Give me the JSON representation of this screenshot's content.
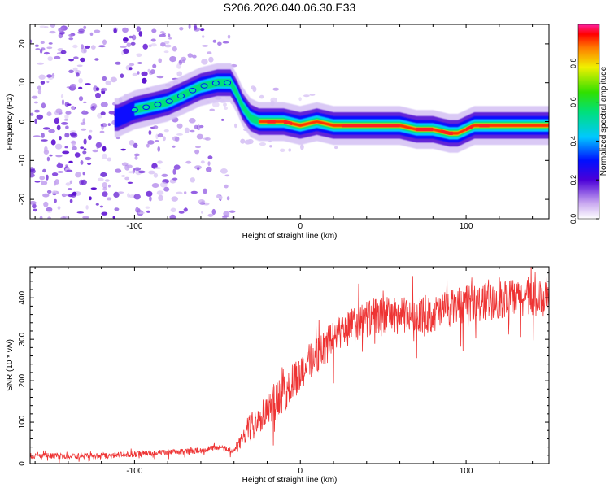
{
  "title": "S206.2026.040.06.30.E33",
  "chart_data": [
    {
      "type": "heatmap",
      "xlabel": "Height of straight line (km)",
      "ylabel": "Frequency (Hz)",
      "xlim": [
        -163,
        150
      ],
      "ylim": [
        -25,
        25
      ],
      "xticks": [
        -100,
        0,
        100
      ],
      "yticks": [
        20,
        10,
        0,
        -10,
        -20
      ],
      "xtick_labels": [
        "-100",
        "0",
        "100"
      ],
      "ytick_labels": [
        "20",
        "10",
        "0",
        "-10",
        "-20"
      ],
      "ridge": {
        "x": [
          -110,
          -100,
          -90,
          -80,
          -70,
          -60,
          -50,
          -42,
          -38,
          -35,
          -30,
          -25,
          -20,
          -10,
          0,
          10,
          20,
          30,
          40,
          50,
          60,
          70,
          80,
          90,
          95,
          100,
          105,
          110,
          120,
          130,
          140,
          150
        ],
        "y": [
          1,
          3,
          4,
          5,
          7,
          9,
          10,
          10,
          7,
          4,
          1,
          0,
          0,
          0,
          -1,
          0,
          -1,
          -1,
          -1,
          -1,
          -1,
          -2,
          -2,
          -3,
          -3,
          -2,
          -1,
          -1,
          -1,
          -1,
          -1,
          -1
        ]
      },
      "colorbar": {
        "label": "Normalized spectral amplitude",
        "range": [
          0,
          1
        ],
        "ticks": [
          0.0,
          0.2,
          0.4,
          0.6,
          0.8
        ],
        "tick_labels": [
          "0.0",
          "0.2",
          "0.4",
          "0.6",
          "0.8"
        ]
      }
    },
    {
      "type": "line",
      "xlabel": "Height of straight line (km)",
      "ylabel": "SNR (10 * v/v)",
      "xlim": [
        -163,
        150
      ],
      "ylim": [
        0,
        475
      ],
      "xticks": [
        -100,
        0,
        100
      ],
      "yticks": [
        0,
        100,
        200,
        300,
        400
      ],
      "xtick_labels": [
        "-100",
        "0",
        "100"
      ],
      "ytick_labels": [
        "0",
        "100",
        "200",
        "300",
        "400"
      ],
      "color": "#ee3333",
      "series": [
        {
          "name": "SNR",
          "x": [
            -163,
            -150,
            -140,
            -130,
            -120,
            -110,
            -100,
            -90,
            -80,
            -70,
            -60,
            -55,
            -50,
            -45,
            -40,
            -35,
            -30,
            -25,
            -20,
            -15,
            -10,
            -5,
            0,
            5,
            10,
            15,
            20,
            25,
            30,
            40,
            50,
            60,
            70,
            80,
            90,
            100,
            110,
            120,
            130,
            140,
            150
          ],
          "values": [
            18,
            18,
            17,
            18,
            19,
            20,
            22,
            25,
            26,
            28,
            32,
            35,
            40,
            35,
            30,
            55,
            95,
            110,
            130,
            150,
            160,
            190,
            215,
            240,
            260,
            275,
            300,
            315,
            325,
            345,
            355,
            350,
            360,
            355,
            370,
            380,
            385,
            390,
            395,
            395,
            390
          ]
        }
      ]
    }
  ]
}
